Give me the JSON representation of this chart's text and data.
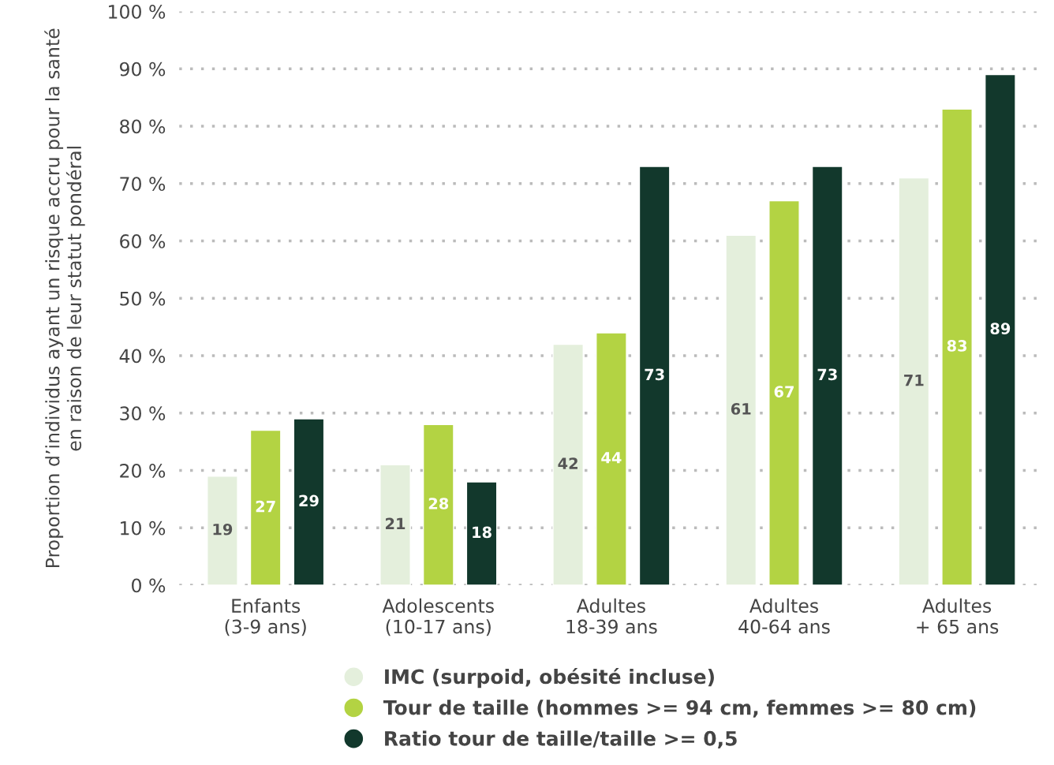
{
  "chart_data": {
    "type": "bar",
    "ylabel": "Proportion d’individus ayant un risque accru pour la santé\nen raison de leur statut pondéral",
    "categories": [
      "Enfants\n(3-9 ans)",
      "Adolescents\n(10-17 ans)",
      "Adultes\n18-39 ans",
      "Adultes\n40-64 ans",
      "Adultes\n+ 65 ans"
    ],
    "series": [
      {
        "name": "IMC (surpoid, obésité incluse)",
        "color": "#e4efdc",
        "values": [
          19,
          21,
          42,
          61,
          71
        ]
      },
      {
        "name": "Tour de taille (hommes >= 94 cm, femmes >= 80 cm)",
        "color": "#b3d343",
        "values": [
          27,
          28,
          44,
          67,
          83
        ]
      },
      {
        "name": "Ratio tour de taille/taille >= 0,5",
        "color": "#12382c",
        "values": [
          29,
          18,
          73,
          73,
          89
        ]
      }
    ],
    "ylim": [
      0,
      100
    ],
    "yticks": [
      {
        "value": 0,
        "label": "0 %"
      },
      {
        "value": 10,
        "label": "10 %"
      },
      {
        "value": 20,
        "label": "20 %"
      },
      {
        "value": 30,
        "label": "30 %"
      },
      {
        "value": 40,
        "label": "40 %"
      },
      {
        "value": 50,
        "label": "50 %"
      },
      {
        "value": 60,
        "label": "60 %"
      },
      {
        "value": 70,
        "label": "70 %"
      },
      {
        "value": 80,
        "label": "80 %"
      },
      {
        "value": 90,
        "label": "90 %"
      },
      {
        "value": 100,
        "label": "100 %"
      }
    ],
    "grid": "y",
    "legend": "bottom",
    "data_labels": true,
    "marker": "circle"
  }
}
